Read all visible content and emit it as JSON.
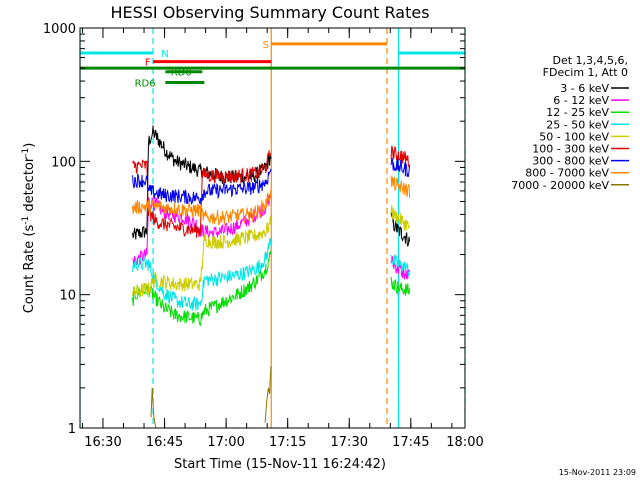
{
  "chart_data": {
    "type": "line",
    "title": "HESSI Observing Summary Count Rates",
    "xlabel": "Start Time (15-Nov-11 16:24:42)",
    "ylabel_main": "Count Rate (s",
    "ylabel_sup1": "-1",
    "ylabel_mid": " detector",
    "ylabel_sup2": "-1",
    "ylabel_end": ")",
    "y_scale": "log",
    "ylim": [
      1,
      1000
    ],
    "xlim_minutes": [
      -0.3,
      93.5
    ],
    "y_ticks": [
      {
        "value": 1,
        "label": "1"
      },
      {
        "value": 10,
        "label": "10"
      },
      {
        "value": 100,
        "label": "100"
      },
      {
        "value": 1000,
        "label": "1000"
      }
    ],
    "x_ticks": [
      {
        "minutes": 5.3,
        "label": "16:30"
      },
      {
        "minutes": 20.3,
        "label": "16:45"
      },
      {
        "minutes": 35.3,
        "label": "17:00"
      },
      {
        "minutes": 50.3,
        "label": "17:15"
      },
      {
        "minutes": 65.3,
        "label": "17:30"
      },
      {
        "minutes": 80.3,
        "label": "17:45"
      },
      {
        "minutes": 95.3,
        "label": "18:00"
      }
    ],
    "legend_header": [
      "Det 1,3,4,5,6,",
      "FDecim 1, Att 0"
    ],
    "legend": [
      {
        "label": "3 - 6 keV",
        "color": "#000000"
      },
      {
        "label": "6 - 12 keV",
        "color": "#ff00ff"
      },
      {
        "label": "12 - 25 keV",
        "color": "#00dd00"
      },
      {
        "label": "25 - 50 keV",
        "color": "#00e6e6"
      },
      {
        "label": "50 - 100 keV",
        "color": "#cccc00"
      },
      {
        "label": "100 - 300 keV",
        "color": "#dd0000"
      },
      {
        "label": "300 - 800 keV",
        "color": "#0000ee"
      },
      {
        "label": "800 - 7000 keV",
        "color": "#ff8800"
      },
      {
        "label": "7000 - 20000 keV",
        "color": "#887700"
      }
    ],
    "flag_bars": [
      {
        "label": "N",
        "color": "#00e6e6",
        "y": 650,
        "segments": [
          [
            -0.3,
            17.5
          ],
          [
            77.3,
            93.5
          ]
        ],
        "label_at": 19.5
      },
      {
        "label": "F",
        "color": "#ff0000",
        "y": 560,
        "segments": [
          [
            17.5,
            46.3
          ]
        ],
        "label_at": 15.5
      },
      {
        "label": "RD0",
        "color": "#008800",
        "y": 470,
        "segments": [
          [
            20.5,
            29.5
          ]
        ],
        "label_at": 21.8
      },
      {
        "label": "RD6",
        "color": "#008800",
        "y": 390,
        "segments": [
          [
            20.5,
            30.0
          ]
        ],
        "label_at": 13.0
      },
      {
        "label": "S",
        "color": "#ff8800",
        "y": 760,
        "segments": [
          [
            46.3,
            74.5
          ]
        ],
        "label_at": 44.2
      },
      {
        "label": "",
        "color": "#008800",
        "y": 500,
        "segments": [
          [
            -0.3,
            93.5
          ]
        ],
        "label_at": null
      }
    ],
    "vertical_lines": [
      {
        "minutes": -0.3,
        "color": "#00e6e6",
        "style": "solid"
      },
      {
        "minutes": 17.5,
        "color": "#00e6e6",
        "style": "dashed"
      },
      {
        "minutes": 46.3,
        "color": "#ff8800",
        "style": "solid"
      },
      {
        "minutes": 74.5,
        "color": "#ff8800",
        "style": "dashed"
      },
      {
        "minutes": 77.3,
        "color": "#00e6e6",
        "style": "solid"
      },
      {
        "minutes": 93.5,
        "color": "#00e6e6",
        "style": "dashed"
      }
    ],
    "series": [
      {
        "name": "3 - 6 keV",
        "color": "#000000",
        "minutes": [
          12.5,
          13.0,
          16.0,
          16.4,
          17.5,
          18.5,
          19.5,
          21.0,
          23.0,
          26.0,
          29.0,
          32.0,
          35.0,
          38.0,
          41.0,
          43.0,
          45.0,
          46.2,
          75.5,
          76.0,
          77.0,
          78.0,
          79.0,
          80.0
        ],
        "values": [
          28,
          28,
          30,
          140,
          165,
          150,
          135,
          115,
          100,
          92,
          85,
          80,
          76,
          76,
          77,
          80,
          90,
          110,
          38,
          34,
          31,
          29,
          27,
          25
        ]
      },
      {
        "name": "6 - 12 keV",
        "color": "#ff00ff",
        "minutes": [
          12.5,
          13.0,
          16.0,
          16.4,
          18.0,
          20.0,
          22.0,
          25.0,
          28.0,
          29.5,
          32.0,
          35.0,
          38.0,
          41.0,
          43.0,
          45.0,
          46.2,
          75.5,
          76.0,
          77.0,
          78.0,
          79.0,
          80.0
        ],
        "values": [
          18,
          18,
          20,
          50,
          48,
          42,
          40,
          38,
          34,
          30,
          29,
          30,
          33,
          37,
          41,
          46,
          55,
          18,
          17,
          16,
          15,
          14,
          14
        ]
      },
      {
        "name": "12 - 25 keV",
        "color": "#00dd00",
        "minutes": [
          12.5,
          13.0,
          16.0,
          16.4,
          18.0,
          20.0,
          23.0,
          26.0,
          29.0,
          30.0,
          32.0,
          35.0,
          38.0,
          41.0,
          43.0,
          45.0,
          46.2,
          75.5,
          76.0,
          77.0,
          78.0,
          79.0,
          80.0
        ],
        "values": [
          9,
          10,
          11,
          11,
          9.5,
          8,
          7,
          6.8,
          6.5,
          7.5,
          8,
          9,
          10,
          11.5,
          13,
          16,
          20,
          13,
          12,
          11.5,
          11,
          11,
          10.5
        ]
      },
      {
        "name": "25 - 50 keV",
        "color": "#00e6e6",
        "minutes": [
          12.5,
          13.0,
          16.0,
          16.4,
          18.0,
          20.0,
          23.0,
          26.0,
          29.0,
          30.0,
          32.0,
          35.0,
          38.0,
          41.0,
          43.0,
          45.0,
          46.2,
          75.5,
          76.0,
          77.0,
          78.0,
          79.0,
          80.0
        ],
        "values": [
          16,
          17,
          17,
          17,
          13,
          10.5,
          9,
          8.5,
          8.5,
          13,
          13,
          13.5,
          14,
          15,
          16,
          19,
          26,
          20,
          18,
          17,
          16.5,
          16,
          15
        ]
      },
      {
        "name": "50 - 100 keV",
        "color": "#cccc00",
        "minutes": [
          12.5,
          13.0,
          16.0,
          16.4,
          18.0,
          20.0,
          23.0,
          26.0,
          29.0,
          30.0,
          32.0,
          35.0,
          38.0,
          41.0,
          43.0,
          45.0,
          46.2,
          75.5,
          76.0,
          77.0,
          78.0,
          79.0,
          80.0
        ],
        "values": [
          10,
          10.5,
          11,
          11,
          13,
          12.5,
          12,
          12,
          12,
          26,
          25,
          25,
          26,
          27,
          28,
          30,
          35,
          45,
          40,
          38,
          36,
          34,
          32
        ]
      },
      {
        "name": "100 - 300 keV",
        "color": "#dd0000",
        "minutes": [
          12.5,
          13.0,
          16.0,
          16.4,
          18.0,
          20.0,
          23.0,
          26.0,
          29.0,
          29.5,
          32.0,
          35.0,
          38.0,
          41.0,
          43.0,
          45.0,
          46.2,
          75.5,
          76.0,
          77.0,
          78.0,
          79.0,
          80.0
        ],
        "values": [
          90,
          92,
          93,
          42,
          36,
          34,
          32,
          31,
          30,
          80,
          78,
          77,
          78,
          79,
          82,
          90,
          120,
          118,
          115,
          112,
          110,
          105,
          100
        ]
      },
      {
        "name": "300 - 800 keV",
        "color": "#0000ee",
        "minutes": [
          12.5,
          13.0,
          16.0,
          16.4,
          18.0,
          20.0,
          23.0,
          26.0,
          29.0,
          30.0,
          32.0,
          35.0,
          38.0,
          41.0,
          43.0,
          45.0,
          46.2,
          75.5,
          76.0,
          77.0,
          78.0,
          79.0,
          80.0
        ],
        "values": [
          70,
          72,
          72,
          60,
          58,
          56,
          55,
          54,
          53,
          60,
          60,
          61,
          62,
          63,
          65,
          70,
          88,
          98,
          95,
          92,
          90,
          87,
          85
        ]
      },
      {
        "name": "800 - 7000 keV",
        "color": "#ff8800",
        "minutes": [
          12.5,
          13.0,
          16.0,
          16.4,
          18.0,
          20.0,
          23.0,
          26.0,
          29.0,
          30.0,
          32.0,
          35.0,
          38.0,
          41.0,
          43.0,
          45.0,
          46.2,
          75.5,
          76.0,
          77.0,
          78.0,
          79.0,
          80.0
        ],
        "values": [
          44,
          45,
          46,
          46,
          46,
          45,
          44,
          43,
          43,
          38,
          38,
          38,
          39,
          40,
          42,
          48,
          60,
          72,
          68,
          66,
          64,
          62,
          60
        ]
      },
      {
        "name": "7000 - 20000 keV",
        "color": "#887700",
        "minutes": [
          17.0,
          17.3,
          17.6,
          17.9,
          18.2,
          44.8,
          45.2,
          45.6,
          45.9,
          46.2
        ],
        "values": [
          1.2,
          2.0,
          1.3,
          1.1,
          1.0,
          1.1,
          1.6,
          2.0,
          1.8,
          2.9
        ]
      }
    ]
  },
  "footer_timestamp": "15-Nov-2011 23:09"
}
